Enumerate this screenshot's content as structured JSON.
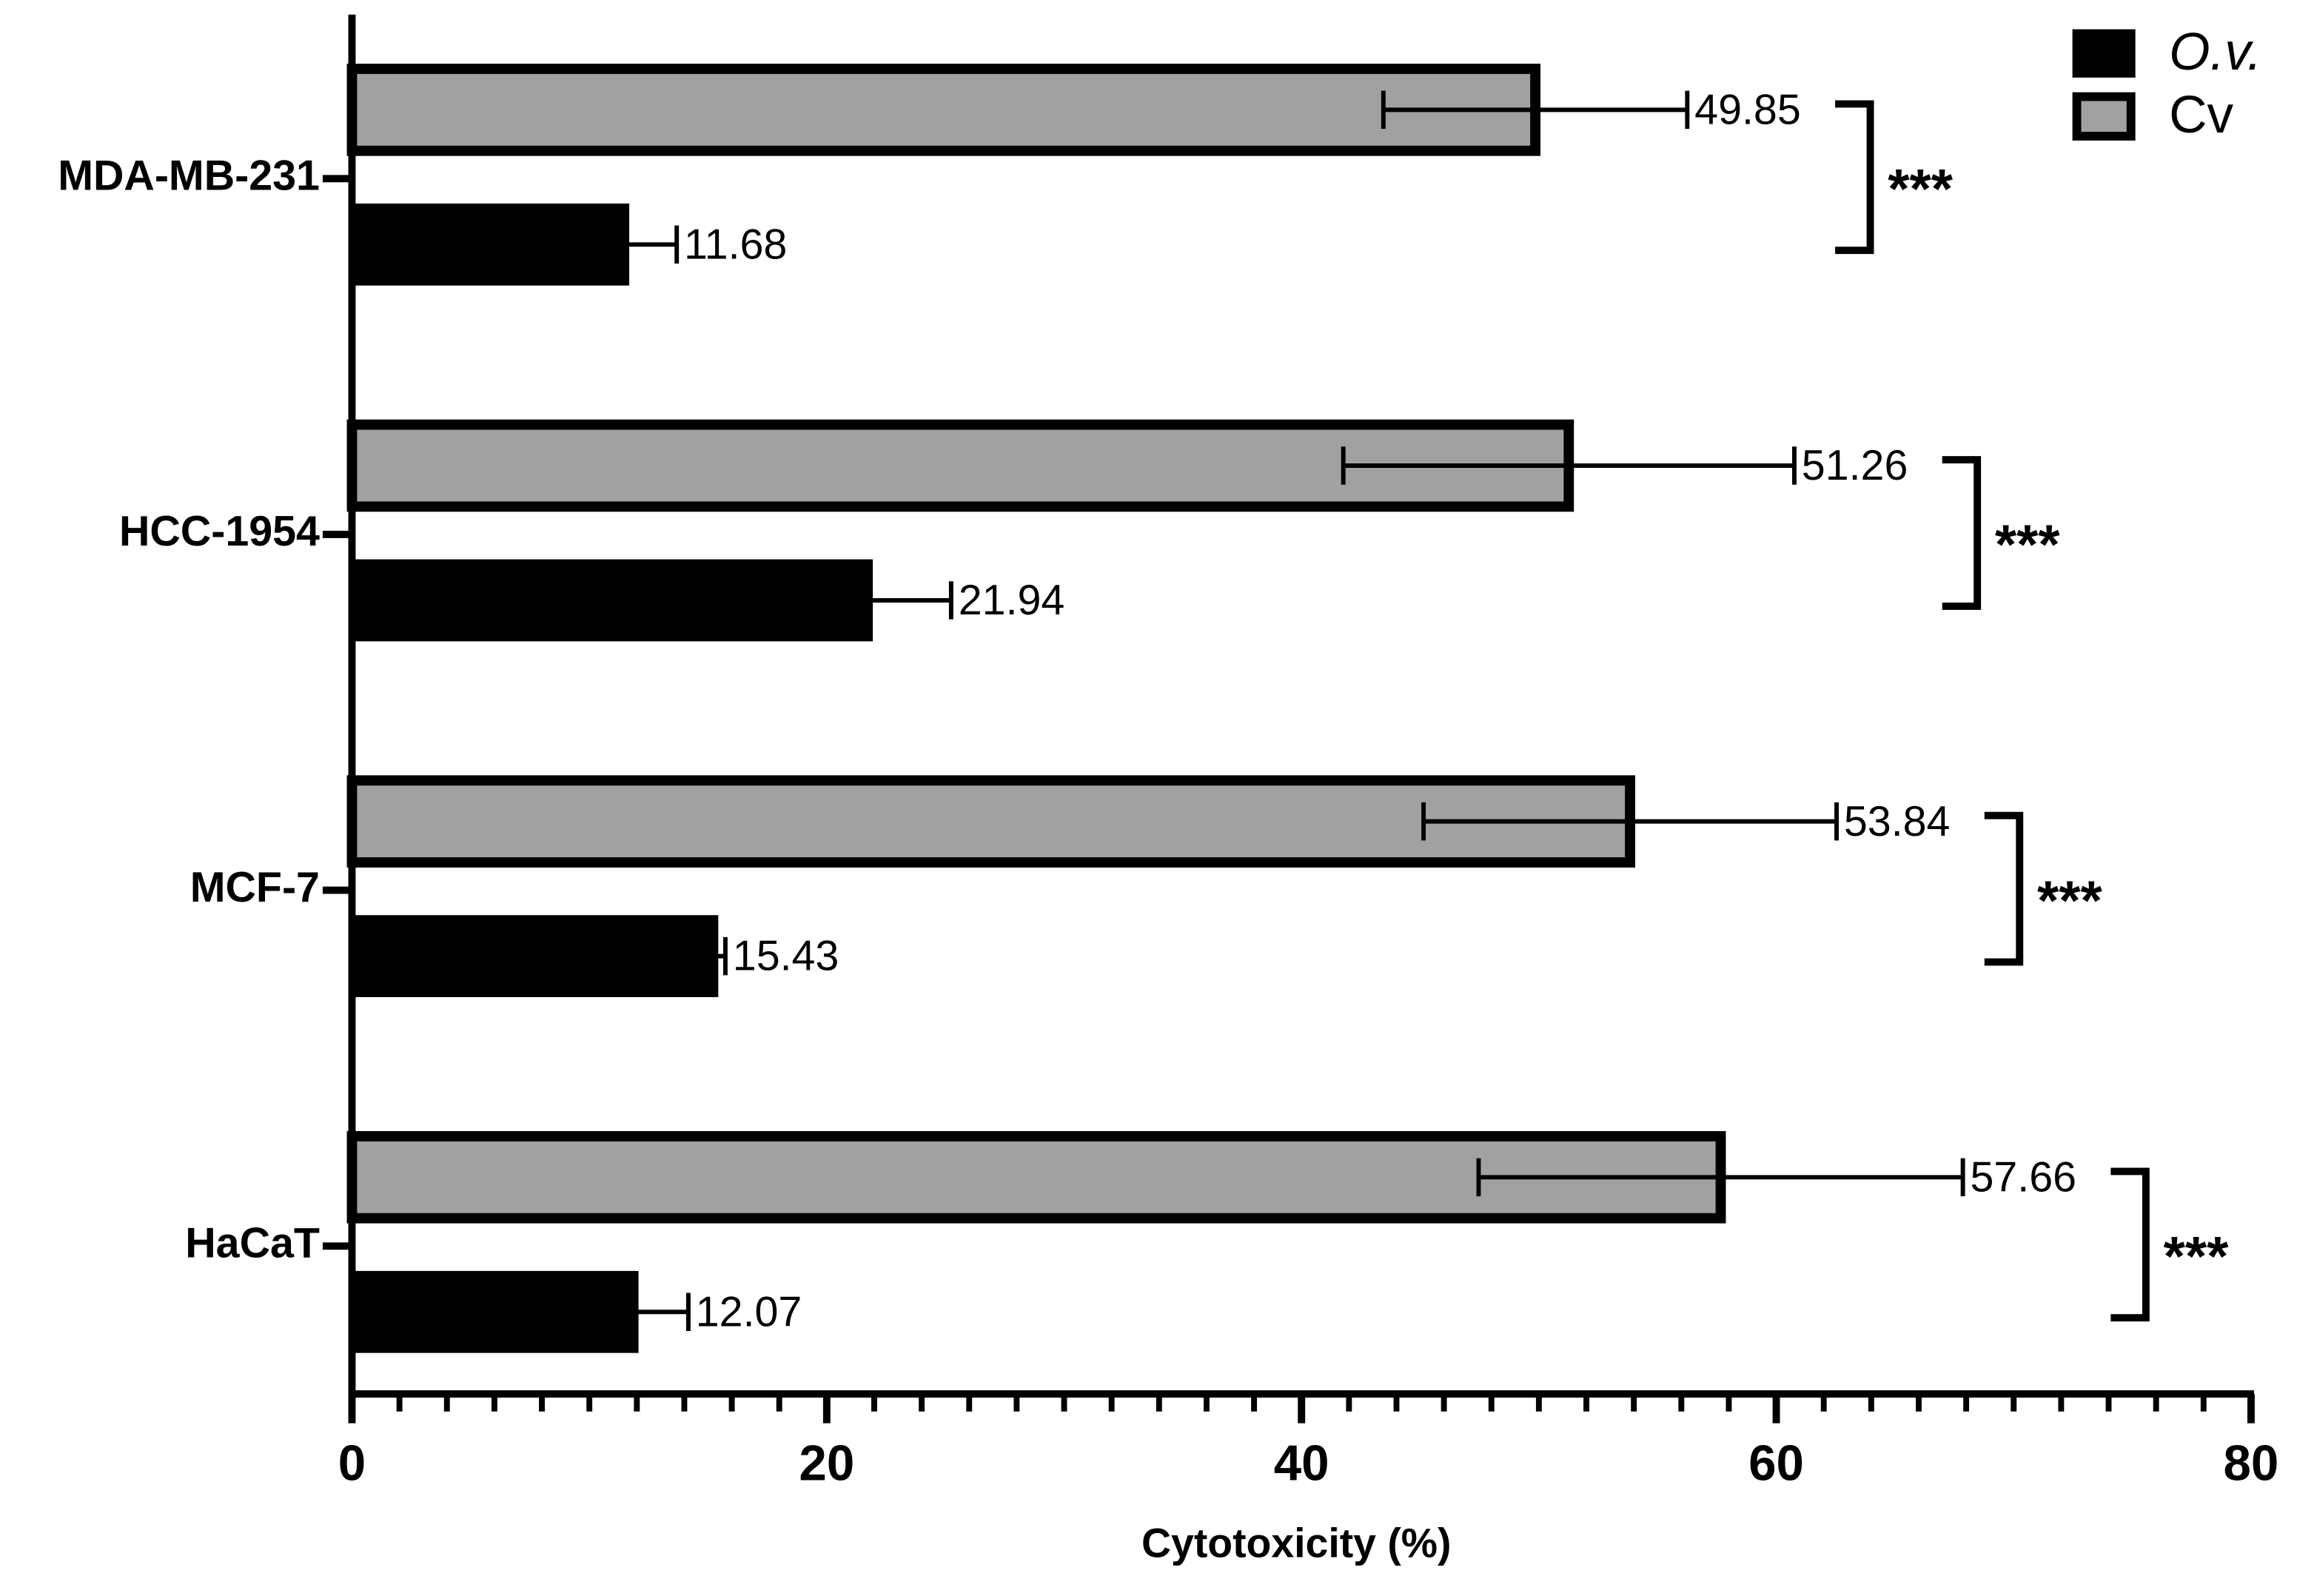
{
  "chart_data": {
    "type": "barh",
    "xlabel": "Cytotoxicity (%)",
    "categories": [
      "MDA-MB-231",
      "HCC-1954",
      "MCF-7",
      "HaCaT"
    ],
    "series": [
      {
        "name": "Cv",
        "color": "#a1a1a4",
        "values": [
          49.85,
          51.26,
          53.84,
          57.66
        ],
        "errors": [
          6.4,
          9.5,
          8.7,
          10.2
        ]
      },
      {
        "name": "O.v.",
        "color": "#000000",
        "values": [
          11.68,
          21.94,
          15.43,
          12.07
        ],
        "errors": [
          2.0,
          3.3,
          0.3,
          2.1
        ]
      }
    ],
    "annotations": [
      "***",
      "***",
      "***",
      "***"
    ],
    "xlim": [
      0,
      80
    ],
    "xticks": [
      0,
      20,
      40,
      60,
      80
    ],
    "legend": "top-right"
  }
}
